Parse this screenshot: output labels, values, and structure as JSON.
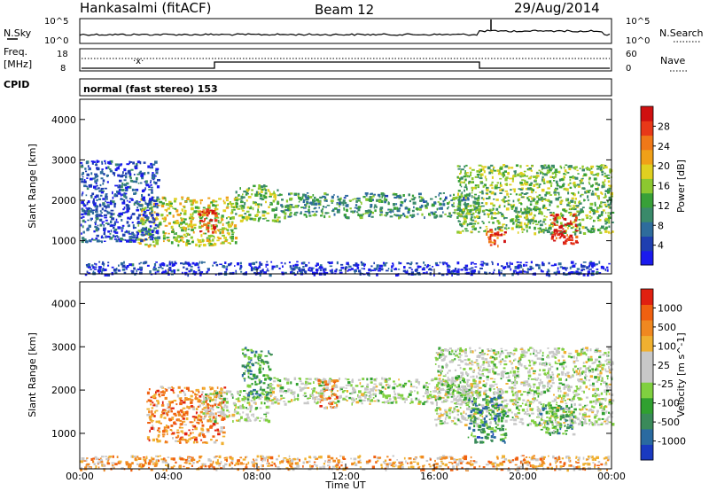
{
  "header": {
    "station": "Hankasalmi (fitACF)",
    "beam": "Beam 12",
    "date": "29/Aug/2014"
  },
  "noise_panel": {
    "left_label": "N.Sky",
    "right_label": "N.Search",
    "left_ticks": [
      "10^5",
      "10^0"
    ],
    "right_ticks": [
      "10^5",
      "10^0"
    ]
  },
  "freq_panel": {
    "left_label_1": "Freq.",
    "left_label_2": "[MHz]",
    "right_label": "Nave",
    "left_ticks": [
      "18",
      "8"
    ],
    "right_ticks": [
      "60",
      "0"
    ]
  },
  "cpid": {
    "label": "CPID",
    "mode_text": "normal (fast stereo) 153"
  },
  "chart_data": [
    {
      "type": "heatmap",
      "name_text": "Power",
      "ylabel": "Slant Range [km]",
      "y_ticks": [
        "1000",
        "2000",
        "3000",
        "4000"
      ],
      "ylim": [
        180,
        4500
      ],
      "xlim": [
        0,
        24
      ],
      "colorbar_title": "Power [dB]",
      "colorbar_ticks": [
        "4",
        "8",
        "12",
        "16",
        "20",
        "24",
        "28"
      ],
      "colorbar_colors": [
        "#1a1aee",
        "#1f3fb0",
        "#2e6c9c",
        "#3a8a6a",
        "#38a038",
        "#8cc830",
        "#e0d020",
        "#f0a018",
        "#f07818",
        "#e83818",
        "#d01010"
      ],
      "regions": [
        {
          "t0": 2.6,
          "t1": 7.0,
          "r0": 900,
          "r1": 2100,
          "level": 0.55
        },
        {
          "t0": 5.3,
          "t1": 6.1,
          "r0": 1200,
          "r1": 1800,
          "level": 0.9
        },
        {
          "t0": 7.0,
          "t1": 9.0,
          "r0": 1500,
          "r1": 2400,
          "level": 0.45
        },
        {
          "t0": 9.0,
          "t1": 18.0,
          "r0": 1600,
          "r1": 2200,
          "level": 0.35
        },
        {
          "t0": 17.0,
          "t1": 24.0,
          "r0": 1200,
          "r1": 2900,
          "level": 0.45
        },
        {
          "t0": 18.3,
          "t1": 19.2,
          "r0": 900,
          "r1": 1300,
          "level": 0.85
        },
        {
          "t0": 21.2,
          "t1": 22.4,
          "r0": 950,
          "r1": 1700,
          "level": 0.95
        },
        {
          "t0": 0.0,
          "t1": 3.5,
          "r0": 1000,
          "r1": 3000,
          "level": 0.15
        },
        {
          "t0": 0.0,
          "t1": 24.0,
          "r0": 180,
          "r1": 500,
          "level": 0.1
        }
      ]
    },
    {
      "type": "heatmap",
      "name_text": "Velocity",
      "ylabel": "Slant Range [km]",
      "xlabel": "Time UT",
      "y_ticks": [
        "1000",
        "2000",
        "3000",
        "4000"
      ],
      "x_ticks": [
        "00:00",
        "04:00",
        "08:00",
        "12:00",
        "16:00",
        "20:00",
        "00:00"
      ],
      "ylim": [
        180,
        4500
      ],
      "xlim": [
        0,
        24
      ],
      "colorbar_title": "Velocity [m s^-1]",
      "colorbar_ticks": [
        "1000",
        "500",
        "100",
        "25",
        "-25",
        "-100",
        "-500",
        "-1000"
      ],
      "colorbar_colors": [
        "#1a3ac0",
        "#2a6aa0",
        "#3a8a5a",
        "#30a030",
        "#80d040",
        "#c8c8c8",
        "#c8c8c8",
        "#f0b030",
        "#f08820",
        "#f06010",
        "#e02010"
      ],
      "regions": [
        {
          "t0": 3.0,
          "t1": 6.5,
          "r0": 800,
          "r1": 2100,
          "level": 0.78
        },
        {
          "t0": 5.5,
          "t1": 8.5,
          "r0": 1300,
          "r1": 2000,
          "level": 0.5
        },
        {
          "t0": 7.3,
          "t1": 8.6,
          "r0": 1800,
          "r1": 3000,
          "level": 0.28
        },
        {
          "t0": 8.5,
          "t1": 18.0,
          "r0": 1700,
          "r1": 2300,
          "level": 0.5
        },
        {
          "t0": 10.7,
          "t1": 11.6,
          "r0": 1600,
          "r1": 2300,
          "level": 0.75
        },
        {
          "t0": 16.0,
          "t1": 24.0,
          "r0": 1200,
          "r1": 3000,
          "level": 0.5
        },
        {
          "t0": 17.5,
          "t1": 19.2,
          "r0": 800,
          "r1": 1900,
          "level": 0.25
        },
        {
          "t0": 20.7,
          "t1": 22.3,
          "r0": 1000,
          "r1": 1700,
          "level": 0.3
        },
        {
          "t0": 0.0,
          "t1": 24.0,
          "r0": 180,
          "r1": 500,
          "level": 0.72
        }
      ]
    }
  ]
}
